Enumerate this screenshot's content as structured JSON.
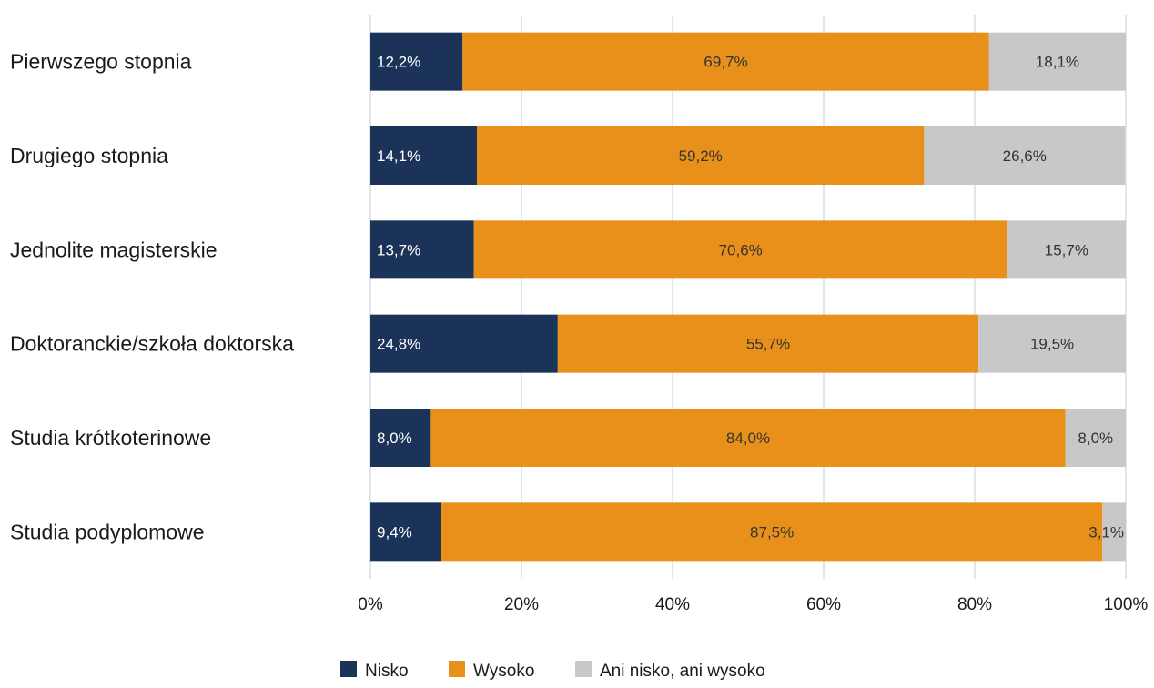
{
  "chart_data": {
    "type": "bar",
    "orientation": "horizontal",
    "stacked": "percent",
    "title": "",
    "xlabel": "",
    "ylabel": "",
    "xlim": [
      0,
      100
    ],
    "grid": true,
    "legend_position": "bottom",
    "categories": [
      "Pierwszego stopnia",
      "Drugiego stopnia",
      "Jednolite magisterskie",
      "Doktoranckie/szkoła doktorska",
      "Studia krótkoterinowe",
      "Studia podyplomowe"
    ],
    "x_ticks": [
      "0%",
      "20%",
      "40%",
      "60%",
      "80%",
      "100%"
    ],
    "series": [
      {
        "name": "Nisko",
        "color": "#1b3358",
        "label_color": "#ffffff",
        "values": [
          12.2,
          14.1,
          13.7,
          24.8,
          8.0,
          9.4
        ],
        "labels": [
          "12,2%",
          "14,1%",
          "13,7%",
          "24,8%",
          "8,0%",
          "9,4%"
        ]
      },
      {
        "name": "Wysoko",
        "color": "#e8901a",
        "label_color": "#333333",
        "values": [
          69.7,
          59.2,
          70.6,
          55.7,
          84.0,
          87.5
        ],
        "labels": [
          "69,7%",
          "59,2%",
          "70,6%",
          "55,7%",
          "84,0%",
          "87,5%"
        ]
      },
      {
        "name": "Ani nisko, ani wysoko",
        "color": "#c8c8c8",
        "label_color": "#333333",
        "values": [
          18.1,
          26.6,
          15.7,
          19.5,
          8.0,
          3.1
        ],
        "labels": [
          "18,1%",
          "26,6%",
          "15,7%",
          "19,5%",
          "8,0%",
          "3,1%"
        ]
      }
    ]
  }
}
